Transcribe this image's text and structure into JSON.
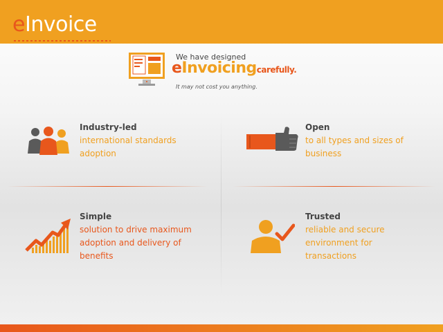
{
  "brand": {
    "e": "e",
    "rest": "Invoice"
  },
  "hero": {
    "line1": "We have designed",
    "title_e": "e",
    "title_rest": "Invoicing",
    "title_suffix": "carefully.",
    "subtitle": "It may not cost you anything."
  },
  "features": [
    {
      "title": "Industry-led",
      "desc": "international standards adoption",
      "icon": "people-group-icon"
    },
    {
      "title": "Open",
      "desc": "to all types and sizes of business",
      "icon": "thumbs-up-icon"
    },
    {
      "title": "Simple",
      "desc": "solution to drive maximum adoption and delivery of benefits",
      "icon": "growth-chart-icon"
    },
    {
      "title": "Trusted",
      "desc": "reliable and secure environment for transactions",
      "icon": "person-check-icon"
    }
  ],
  "colors": {
    "orange": "#f0a020",
    "red": "#e8571c",
    "gray": "#5a5a5a"
  }
}
